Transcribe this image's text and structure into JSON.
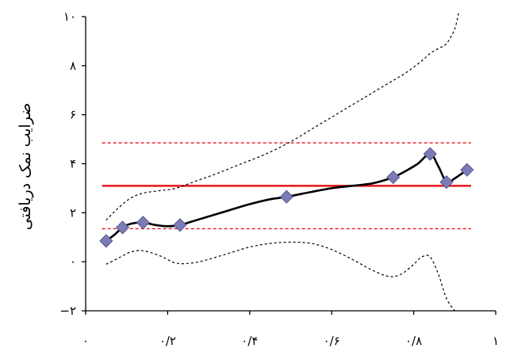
{
  "chart_data": {
    "type": "scatter",
    "title": "",
    "xlabel": "",
    "ylabel": "ضرایب نمک دریافتی",
    "xlim": [
      0,
      1
    ],
    "ylim": [
      -2,
      10
    ],
    "x_ticks": [
      0,
      0.2,
      0.4,
      0.6,
      0.8,
      1
    ],
    "x_tick_labels": [
      "۰",
      "۰/۲",
      "۰/۴",
      "۰/۶",
      "۰/۸",
      "۱"
    ],
    "y_ticks": [
      -2,
      0,
      2,
      4,
      6,
      8,
      10
    ],
    "y_tick_labels": [
      "−۲",
      "۰",
      "۲",
      "۴",
      "۶",
      "۸",
      "۱۰"
    ],
    "grid": false,
    "legend": "none",
    "colors": {
      "points": "#7b7bb5",
      "points_stroke": "#4a4a85",
      "fit": "#000000",
      "mean": "#e8141b",
      "limits": "#e8141b",
      "band": "#000000"
    },
    "series": [
      {
        "type": "scatter",
        "x": [
          0.05,
          0.09,
          0.14,
          0.23,
          0.49,
          0.75,
          0.84,
          0.88,
          0.93
        ],
        "y": [
          0.85,
          1.4,
          1.6,
          1.5,
          2.65,
          3.45,
          4.4,
          3.25,
          3.75
        ]
      },
      {
        "type": "line",
        "x": [
          0.05,
          0.07,
          0.09,
          0.11,
          0.14,
          0.17,
          0.2,
          0.23,
          0.26,
          0.3,
          0.35,
          0.4,
          0.45,
          0.49,
          0.55,
          0.6,
          0.65,
          0.7,
          0.75,
          0.78,
          0.81,
          0.84,
          0.86,
          0.88,
          0.9,
          0.93
        ],
        "y": [
          0.85,
          1.1,
          1.4,
          1.55,
          1.6,
          1.5,
          1.45,
          1.5,
          1.65,
          1.85,
          2.1,
          2.35,
          2.55,
          2.65,
          2.85,
          3.0,
          3.1,
          3.2,
          3.45,
          3.7,
          4.0,
          4.4,
          3.9,
          3.25,
          3.4,
          3.75
        ]
      },
      {
        "type": "hline",
        "y": 3.1,
        "style": "solid",
        "x": [
          0.04,
          0.94
        ]
      },
      {
        "type": "hline",
        "y": 4.85,
        "style": "dashed",
        "x": [
          0.04,
          0.94
        ]
      },
      {
        "type": "hline",
        "y": 1.35,
        "style": "dashed",
        "x": [
          0.04,
          0.94
        ]
      },
      {
        "type": "line",
        "style": "dotted",
        "x": [
          0.05,
          0.08,
          0.11,
          0.14,
          0.18,
          0.22,
          0.27,
          0.32,
          0.38,
          0.44,
          0.5,
          0.56,
          0.62,
          0.68,
          0.74,
          0.78,
          0.82,
          0.84,
          0.86,
          0.88,
          0.9,
          0.91
        ],
        "y": [
          1.7,
          2.2,
          2.6,
          2.8,
          2.9,
          3.0,
          3.3,
          3.6,
          4.0,
          4.4,
          4.9,
          5.5,
          6.1,
          6.7,
          7.3,
          7.7,
          8.2,
          8.5,
          8.7,
          8.9,
          9.5,
          10.2
        ]
      },
      {
        "type": "line",
        "style": "dotted",
        "x": [
          0.05,
          0.08,
          0.11,
          0.14,
          0.18,
          0.22,
          0.26,
          0.3,
          0.35,
          0.4,
          0.45,
          0.5,
          0.55,
          0.6,
          0.65,
          0.7,
          0.74,
          0.77,
          0.8,
          0.82,
          0.84,
          0.86,
          0.88,
          0.9
        ],
        "y": [
          -0.1,
          0.15,
          0.4,
          0.45,
          0.25,
          -0.05,
          -0.05,
          0.1,
          0.35,
          0.6,
          0.75,
          0.8,
          0.75,
          0.5,
          0.1,
          -0.35,
          -0.6,
          -0.5,
          -0.1,
          0.2,
          0.2,
          -0.5,
          -1.5,
          -2.0
        ]
      }
    ]
  }
}
